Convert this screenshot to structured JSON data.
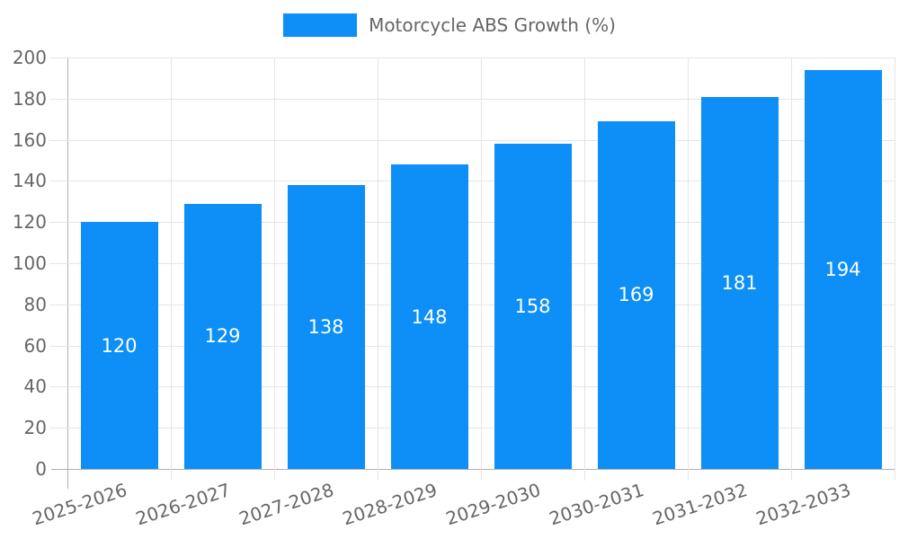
{
  "legend": {
    "label": "Motorcycle ABS Growth (%)"
  },
  "colors": {
    "bar": "#0d8ff7",
    "grid": "#e5e5e5",
    "axis": "#b0b0b0",
    "tick_text": "#666666",
    "bar_label_text": "#ffffff",
    "background": "#ffffff"
  },
  "chart_data": {
    "type": "bar",
    "title": "Motorcycle ABS Growth (%)",
    "categories": [
      "2025-2026",
      "2026-2027",
      "2027-2028",
      "2028-2029",
      "2029-2030",
      "2030-2031",
      "2031-2032",
      "2032-2033"
    ],
    "values": [
      120,
      129,
      138,
      148,
      158,
      169,
      181,
      194
    ],
    "xlabel": "",
    "ylabel": "",
    "ylim": [
      0,
      200
    ],
    "yticks": [
      0,
      20,
      40,
      60,
      80,
      100,
      120,
      140,
      160,
      180,
      200
    ],
    "grid": "on",
    "legend_position": "top-center",
    "x_tick_rotation_deg": -18,
    "bar_labels": "inside-middle"
  }
}
